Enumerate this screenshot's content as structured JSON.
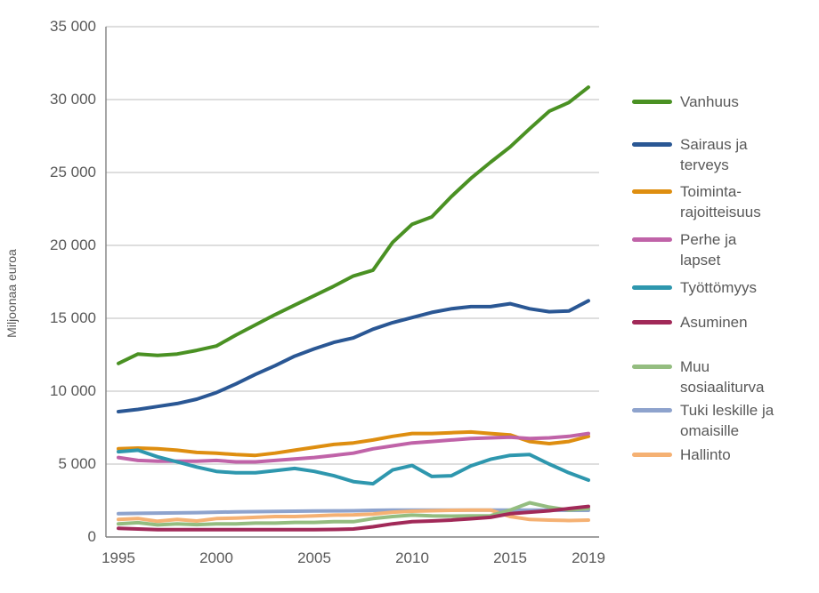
{
  "chart_data": {
    "type": "line",
    "title": "",
    "ylabel": "Miljoonaa euroa",
    "xlabel": "",
    "ylim": [
      0,
      35000
    ],
    "grid": "horizontal",
    "legend_position": "right",
    "x": [
      1995,
      1996,
      1997,
      1998,
      1999,
      2000,
      2001,
      2002,
      2003,
      2004,
      2005,
      2006,
      2007,
      2008,
      2009,
      2010,
      2011,
      2012,
      2013,
      2014,
      2015,
      2016,
      2017,
      2018,
      2019
    ],
    "x_ticks": [
      {
        "label": "1995",
        "year": 1995
      },
      {
        "label": "2000",
        "year": 2000
      },
      {
        "label": "2005",
        "year": 2005
      },
      {
        "label": "2010",
        "year": 2010
      },
      {
        "label": "2015",
        "year": 2015
      },
      {
        "label": "2019",
        "year": 2019
      }
    ],
    "y_ticks": [
      {
        "label": "35 000",
        "value": 35000
      },
      {
        "label": "30 000",
        "value": 30000
      },
      {
        "label": "25 000",
        "value": 25000
      },
      {
        "label": "20 000",
        "value": 20000
      },
      {
        "label": "15 000",
        "value": 15000
      },
      {
        "label": "10 000",
        "value": 10000
      },
      {
        "label": "5 000",
        "value": 5000
      },
      {
        "label": "0",
        "value": 0
      }
    ],
    "series": [
      {
        "name": "Vanhuus",
        "color": "#4a9123",
        "values": [
          11900,
          12550,
          12450,
          12550,
          12800,
          13100,
          13850,
          14550,
          15250,
          15900,
          16550,
          17200,
          17900,
          18300,
          20200,
          21450,
          21950,
          23350,
          24600,
          25700,
          26750,
          28000,
          29200,
          29800,
          30850
        ]
      },
      {
        "name": "Sairaus ja terveys",
        "color": "#2a5794",
        "values": [
          8600,
          8750,
          8950,
          9150,
          9450,
          9900,
          10500,
          11150,
          11750,
          12400,
          12900,
          13350,
          13650,
          14250,
          14700,
          15050,
          15400,
          15650,
          15800,
          15800,
          16000,
          15650,
          15450,
          15500,
          16200
        ]
      },
      {
        "name": "Toimintarajoitteisuus",
        "color": "#de8e10",
        "values": [
          6050,
          6100,
          6050,
          5950,
          5800,
          5750,
          5650,
          5600,
          5750,
          5950,
          6150,
          6350,
          6450,
          6650,
          6900,
          7100,
          7100,
          7150,
          7200,
          7100,
          7000,
          6550,
          6400,
          6550,
          6900
        ]
      },
      {
        "name": "Perhe ja lapset",
        "color": "#c063a8",
        "values": [
          5450,
          5250,
          5200,
          5200,
          5200,
          5250,
          5150,
          5150,
          5250,
          5350,
          5450,
          5600,
          5750,
          6050,
          6250,
          6450,
          6550,
          6650,
          6750,
          6800,
          6850,
          6750,
          6800,
          6900,
          7100
        ]
      },
      {
        "name": "Työttömyys",
        "color": "#2e97ae",
        "values": [
          5850,
          5950,
          5500,
          5150,
          4800,
          4500,
          4400,
          4400,
          4550,
          4700,
          4500,
          4200,
          3800,
          3650,
          4600,
          4900,
          4150,
          4200,
          4880,
          5330,
          5600,
          5650,
          5000,
          4400,
          3900
        ]
      },
      {
        "name": "Asuminen",
        "color": "#a12958",
        "values": [
          600,
          550,
          500,
          500,
          500,
          500,
          500,
          500,
          500,
          500,
          500,
          520,
          550,
          700,
          900,
          1050,
          1100,
          1160,
          1250,
          1350,
          1600,
          1700,
          1800,
          1950,
          2100
        ]
      },
      {
        "name": "Muu sosiaaliturva",
        "color": "#94bd80",
        "values": [
          900,
          980,
          830,
          900,
          850,
          900,
          900,
          950,
          950,
          1000,
          1000,
          1050,
          1050,
          1260,
          1400,
          1500,
          1450,
          1430,
          1450,
          1460,
          1850,
          2350,
          2050,
          1850,
          1950
        ]
      },
      {
        "name": "Tuki leskille ja omaisille",
        "color": "#8ea3cd",
        "values": [
          1600,
          1620,
          1640,
          1650,
          1670,
          1700,
          1720,
          1740,
          1750,
          1770,
          1780,
          1790,
          1800,
          1830,
          1850,
          1850,
          1850,
          1850,
          1850,
          1850,
          1850,
          1850,
          1850,
          1830,
          1830
        ]
      },
      {
        "name": "Hallinto",
        "color": "#f5b173",
        "values": [
          1200,
          1270,
          1080,
          1200,
          1100,
          1260,
          1300,
          1350,
          1400,
          1400,
          1450,
          1500,
          1520,
          1570,
          1700,
          1770,
          1800,
          1830,
          1850,
          1850,
          1400,
          1200,
          1160,
          1130,
          1160
        ]
      }
    ]
  },
  "legend": {
    "items": [
      {
        "label": "Vanhuus",
        "color": "#4a9123"
      },
      {
        "label": "Sairaus ja\nterveys",
        "color": "#2a5794"
      },
      {
        "label": "Toiminta-\nrajoitteisuus",
        "color": "#de8e10"
      },
      {
        "label": "Perhe ja\nlapset",
        "color": "#c063a8"
      },
      {
        "label": "Työttömyys",
        "color": "#2e97ae"
      },
      {
        "label": "Asuminen",
        "color": "#a12958"
      },
      {
        "label": "Muu\nsosiaaliturva",
        "color": "#94bd80"
      },
      {
        "label": "Tuki leskille ja\nomaisille",
        "color": "#8ea3cd"
      },
      {
        "label": "Hallinto",
        "color": "#f5b173"
      }
    ]
  },
  "colors": {
    "axis": "#808080",
    "gridline": "#c9c9c9",
    "tick_text": "#595959"
  }
}
